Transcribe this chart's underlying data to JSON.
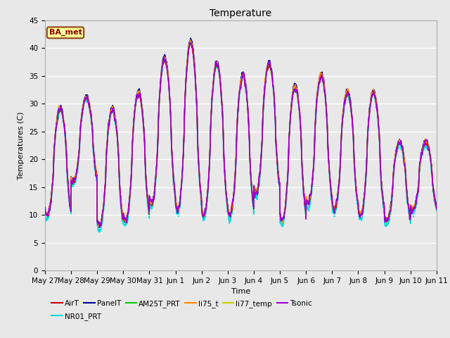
{
  "title": "Temperature",
  "xlabel": "Time",
  "ylabel": "Temperatures (C)",
  "ylim": [
    0,
    45
  ],
  "yticks": [
    0,
    5,
    10,
    15,
    20,
    25,
    30,
    35,
    40,
    45
  ],
  "plot_bg_color": "#e8e8e8",
  "fig_bg_color": "#e8e8e8",
  "annotation_text": "BA_met",
  "annotation_bg": "#ffff99",
  "annotation_border": "#8b4513",
  "series": {
    "AirT": {
      "color": "#cc0000",
      "lw": 1.0,
      "zorder": 5
    },
    "PanelT": {
      "color": "#000099",
      "lw": 1.0,
      "zorder": 4
    },
    "AM25T_PRT": {
      "color": "#00cc00",
      "lw": 1.0,
      "zorder": 3
    },
    "li75_t": {
      "color": "#ff8800",
      "lw": 1.0,
      "zorder": 6
    },
    "li77_temp": {
      "color": "#cccc00",
      "lw": 1.0,
      "zorder": 2
    },
    "Tsonic": {
      "color": "#9900cc",
      "lw": 1.2,
      "zorder": 7
    },
    "NR01_PRT": {
      "color": "#00dddd",
      "lw": 1.2,
      "zorder": 1
    }
  },
  "xtick_labels": [
    "May 27",
    "May 28",
    "May 29",
    "May 30",
    "May 31",
    "Jun 1",
    "Jun 2",
    "Jun 3",
    "Jun 4",
    "Jun 5",
    "Jun 6",
    "Jun 7",
    "Jun 8",
    "Jun 9",
    "Jun 10",
    "Jun 11"
  ],
  "num_days": 15,
  "pts_per_day": 144,
  "peaks": [
    29,
    31,
    29,
    32,
    38,
    41,
    37,
    35,
    37,
    33,
    35,
    32,
    32,
    23,
    23
  ],
  "troughs": [
    10,
    16,
    8,
    9,
    12,
    11,
    10,
    10,
    14,
    9,
    12,
    11,
    10,
    9,
    11
  ],
  "peak_hour": 14,
  "trough_hour": 6
}
